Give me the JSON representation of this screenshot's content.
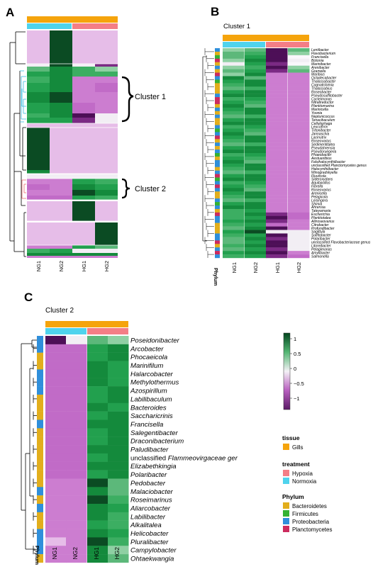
{
  "panels": {
    "a": "A",
    "b": "B",
    "c": "C"
  },
  "colors": {
    "tissue_gills": "#f5a40c",
    "hypoxia": "#f47e86",
    "normoxia": "#4fd3ed",
    "bacteroidetes": "#e2ae1c",
    "firmicutes": "#34b233",
    "proteobacteria": "#2f8fdb",
    "planctomycetes": "#cc2b5e",
    "tree_cluster1": "#3bbde0",
    "tree_cluster2": "#ef6e72"
  },
  "panel_a": {
    "cluster1_label": "Cluster 1",
    "cluster2_label": "Cluster 2",
    "columns": [
      "NG1",
      "NG2",
      "HG1",
      "HG2"
    ]
  },
  "panel_b": {
    "title": "Cluster 1",
    "columns": [
      "NG1",
      "NG2",
      "HG1",
      "HG2"
    ],
    "phylum_label": "Phylum",
    "rows": [
      "Lentibacter",
      "Flavobacterium",
      "Francisella",
      "Bizionia",
      "Marinibacter",
      "Arenibacter",
      "Gramella",
      "Maribius",
      "Octadecabacter",
      "Thalassobacter",
      "Cognatishimia",
      "Thalassobius",
      "Roseobacter",
      "Pseudosulfitobacter",
      "Cocleimonas",
      "Nitratireductor",
      "Planktomarina",
      "Marinicella",
      "Yoonia",
      "Neptunicoccus",
      "Tenacibaculum",
      "Cellulophaga",
      "Leucothrix",
      "Tritonibacter",
      "Jannaschia",
      "Lacinutrix",
      "Roseovarius",
      "Sedimentitalea",
      "Pseudahrensia",
      "Pseudoruegeria",
      "Phaeobacter",
      "Aestuariibius",
      "Falsihalocynthiibacter",
      "unclassified Planctomycetes genus",
      "Halocynthiibacter",
      "Winogradskyella",
      "Fluviicola",
      "Sideroxydans",
      "Aquibacillus",
      "Fibrella",
      "Roseovarius",
      "Arenicella",
      "Pelagicola",
      "Leisingera",
      "Shimia",
      "Ahrensia",
      "Tateyamaria",
      "Escherichia",
      "Planktotalea",
      "Aliiroseovarius",
      "Citrobacter",
      "Profundibacter",
      "Sagittula",
      "Sulfitobacter",
      "Polaribacter",
      "unclassified Flavobacteriaceae genus",
      "Litoreibacter",
      "Pelagimonas",
      "Amylibacter",
      "Salmonella"
    ]
  },
  "panel_c": {
    "title": "Cluster 2",
    "columns": [
      "NG1",
      "NG2",
      "HG1",
      "HG2"
    ],
    "phylum_label": "Phylum",
    "rows": [
      "Poseidonibacter",
      "Arcobacter",
      "Phocaeicola",
      "Marinifilum",
      "Halarcobacter",
      "Methylothermus",
      "Azospirillum",
      "Labilibaculum",
      "Bacteroides",
      "Saccharicrinis",
      "Francisella",
      "Salegentibacter",
      "Draconibacterium",
      "Paludibacter",
      "unclassified Flammeovirgaceae ger",
      "Elizabethkingia",
      "Polaribacter",
      "Pedobacter",
      "Malaciobacter",
      "Roseimarinus",
      "Aliarcobacter",
      "Labilibacter",
      "Alkalitalea",
      "Helicobacter",
      "Pluralibacter",
      "Campylobacter",
      "Ohtaekwangia"
    ]
  },
  "legend": {
    "scale_ticks": [
      "1",
      "0.5",
      "0",
      "−0.5",
      "−1"
    ],
    "tissue_title": "tissue",
    "tissue_items": [
      "Gills"
    ],
    "treatment_title": "treatment",
    "treatment_items": [
      "Hypoxia",
      "Normoxia"
    ],
    "phylum_title": "Phylum",
    "phylum_items": [
      "Bacteroidetes",
      "Firmicutes",
      "Proteobacteria",
      "Planctomycetes"
    ]
  }
}
